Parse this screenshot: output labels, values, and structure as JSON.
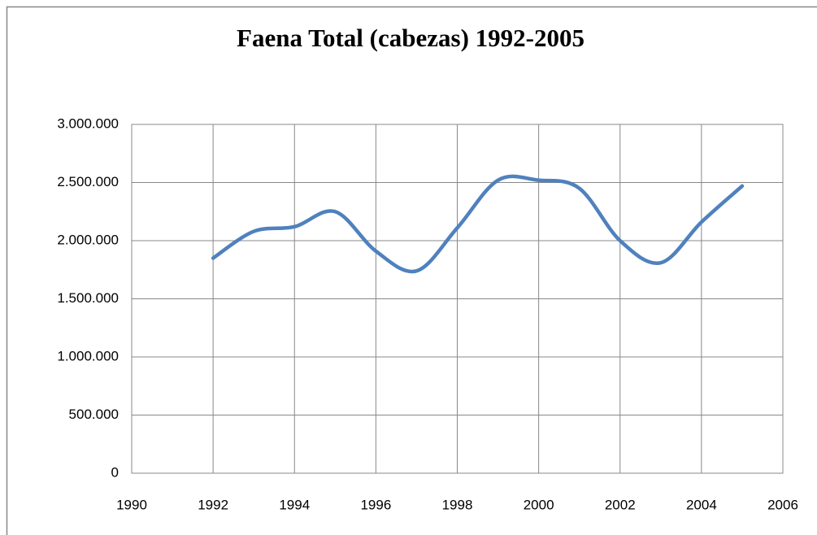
{
  "chart_data": {
    "type": "line",
    "title": "Faena Total (cabezas) 1992-2005",
    "x": [
      1992,
      1993,
      1994,
      1995,
      1996,
      1997,
      1998,
      1999,
      2000,
      2001,
      2002,
      2003,
      2004,
      2005
    ],
    "series": [
      {
        "name": "Faena Total",
        "color": "#4f81bd",
        "values": [
          1850000,
          2080000,
          2120000,
          2250000,
          1910000,
          1740000,
          2110000,
          2520000,
          2520000,
          2450000,
          2000000,
          1810000,
          2160000,
          2470000
        ]
      }
    ],
    "xlim": [
      1990,
      2006
    ],
    "xticks": [
      1990,
      1992,
      1994,
      1996,
      1998,
      2000,
      2002,
      2004,
      2006
    ],
    "ylim": [
      0,
      3000000
    ],
    "yticks": [
      0,
      {
        "value": 500000,
        "label": "500.000"
      },
      {
        "value": 1000000,
        "label": "1.000.000"
      },
      {
        "value": 1500000,
        "label": "1.500.000"
      },
      {
        "value": 2000000,
        "label": "2.000.000"
      },
      {
        "value": 2500000,
        "label": "2.500.000"
      },
      {
        "value": 3000000,
        "label": "3.000.000"
      }
    ],
    "grid": true,
    "smooth": true
  }
}
